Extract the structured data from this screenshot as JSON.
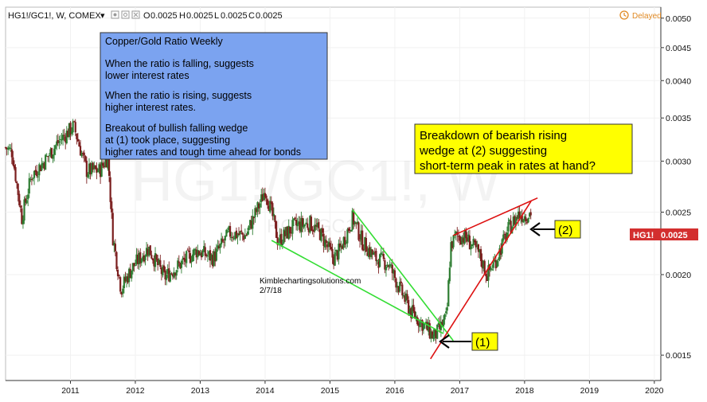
{
  "header": {
    "symbol": "HG1!/GC1!, W, COMEX",
    "dropdown_glyph": "▾",
    "ohlc": [
      {
        "k": "O",
        "v": "0.0025"
      },
      {
        "k": "H",
        "v": "0.0025"
      },
      {
        "k": "L",
        "v": "0.0025"
      },
      {
        "k": "C",
        "v": "0.0025"
      }
    ],
    "delayed_label": "Delayed",
    "icons": [
      "eye-icon",
      "gear-icon",
      "close-icon",
      "clock-icon"
    ]
  },
  "watermark": {
    "main": "HG1!/GC1!, W",
    "sub": "HG1!/GC1!"
  },
  "price_badge": {
    "label": "HG1!",
    "value": "0.0025"
  },
  "notes": {
    "box_lines": [
      "Copper/Gold Ratio Weekly",
      "When the ratio is falling, suggests",
      "lower interest rates",
      "When the ratio is rising, suggests",
      "higher interest rates.",
      "Breakout of bullish falling wedge",
      "at (1) took place, suggesting",
      "higher rates and tough time ahead for bonds"
    ],
    "callout_lines": [
      "Breakdown  of bearish rising",
      "wedge at (2) suggesting",
      "short-term peak in rates at hand?"
    ],
    "label_1": "(1)",
    "label_2": "(2)",
    "credit_site": "Kimblechartingsolutions.com",
    "credit_date": "2/7/18"
  },
  "colors": {
    "up": "#2e7d32",
    "down": "#7b1e1e",
    "note_box": "#7ba3f0",
    "callout_box": "#ffff00",
    "green_trend": "#33dd33",
    "red_trend": "#dd1111",
    "badge": "#d32f2f",
    "axis": "#333333"
  },
  "chart_data": {
    "type": "candlestick",
    "title": "HG1!/GC1!, W, COMEX",
    "x_ticks": [
      "2011",
      "2012",
      "2013",
      "2014",
      "2015",
      "2016",
      "2017",
      "2018",
      "2019",
      "2020"
    ],
    "y_ticks": [
      "0.0050",
      "0.0045",
      "0.0040",
      "0.0035",
      "0.0030",
      "0.0025",
      "0.0020",
      "0.0015"
    ],
    "y_scale": "log",
    "ylim": [
      0.00137,
      0.0052
    ],
    "xlim": [
      2010.0,
      2020.1
    ],
    "last_value": 0.0025,
    "anchors": [
      {
        "x": 2010.0,
        "y": 0.00315
      },
      {
        "x": 2010.1,
        "y": 0.0031
      },
      {
        "x": 2010.25,
        "y": 0.00245
      },
      {
        "x": 2010.4,
        "y": 0.00285
      },
      {
        "x": 2010.6,
        "y": 0.003
      },
      {
        "x": 2010.8,
        "y": 0.0032
      },
      {
        "x": 2011.05,
        "y": 0.0034
      },
      {
        "x": 2011.25,
        "y": 0.0029
      },
      {
        "x": 2011.45,
        "y": 0.0029
      },
      {
        "x": 2011.58,
        "y": 0.00305
      },
      {
        "x": 2011.65,
        "y": 0.0023
      },
      {
        "x": 2011.78,
        "y": 0.0019
      },
      {
        "x": 2011.95,
        "y": 0.00205
      },
      {
        "x": 2012.2,
        "y": 0.0022
      },
      {
        "x": 2012.45,
        "y": 0.00198
      },
      {
        "x": 2012.7,
        "y": 0.00208
      },
      {
        "x": 2012.95,
        "y": 0.00218
      },
      {
        "x": 2013.2,
        "y": 0.00212
      },
      {
        "x": 2013.45,
        "y": 0.00232
      },
      {
        "x": 2013.7,
        "y": 0.0023
      },
      {
        "x": 2013.95,
        "y": 0.00262
      },
      {
        "x": 2014.0,
        "y": 0.00272
      },
      {
        "x": 2014.12,
        "y": 0.00245
      },
      {
        "x": 2014.2,
        "y": 0.00225
      },
      {
        "x": 2014.45,
        "y": 0.00238
      },
      {
        "x": 2014.7,
        "y": 0.0024
      },
      {
        "x": 2014.85,
        "y": 0.00232
      },
      {
        "x": 2014.95,
        "y": 0.00222
      },
      {
        "x": 2015.05,
        "y": 0.00212
      },
      {
        "x": 2015.15,
        "y": 0.00218
      },
      {
        "x": 2015.35,
        "y": 0.00245
      },
      {
        "x": 2015.5,
        "y": 0.00225
      },
      {
        "x": 2015.7,
        "y": 0.00212
      },
      {
        "x": 2015.9,
        "y": 0.00208
      },
      {
        "x": 2016.1,
        "y": 0.00188
      },
      {
        "x": 2016.25,
        "y": 0.00175
      },
      {
        "x": 2016.45,
        "y": 0.00167
      },
      {
        "x": 2016.6,
        "y": 0.0016
      },
      {
        "x": 2016.7,
        "y": 0.00165
      },
      {
        "x": 2016.8,
        "y": 0.00172
      },
      {
        "x": 2016.86,
        "y": 0.00222
      },
      {
        "x": 2016.95,
        "y": 0.0023
      },
      {
        "x": 2017.1,
        "y": 0.00228
      },
      {
        "x": 2017.3,
        "y": 0.00215
      },
      {
        "x": 2017.42,
        "y": 0.002
      },
      {
        "x": 2017.55,
        "y": 0.0021
      },
      {
        "x": 2017.75,
        "y": 0.00235
      },
      {
        "x": 2017.9,
        "y": 0.00248
      },
      {
        "x": 2018.02,
        "y": 0.00247
      },
      {
        "x": 2018.1,
        "y": 0.0025
      }
    ],
    "trendlines": [
      {
        "name": "falling wedge upper",
        "color": "green",
        "from": {
          "x": 2015.35,
          "y": 0.00252
        },
        "to": {
          "x": 2016.9,
          "y": 0.00158
        }
      },
      {
        "name": "falling wedge lower",
        "color": "green",
        "from": {
          "x": 2014.1,
          "y": 0.00226
        },
        "to": {
          "x": 2016.75,
          "y": 0.00162
        }
      },
      {
        "name": "rising wedge upper",
        "color": "red",
        "from": {
          "x": 2016.9,
          "y": 0.0023
        },
        "to": {
          "x": 2018.2,
          "y": 0.00263
        }
      },
      {
        "name": "rising wedge lower",
        "color": "red",
        "from": {
          "x": 2016.55,
          "y": 0.00148
        },
        "to": {
          "x": 2018.1,
          "y": 0.0026
        }
      }
    ]
  }
}
